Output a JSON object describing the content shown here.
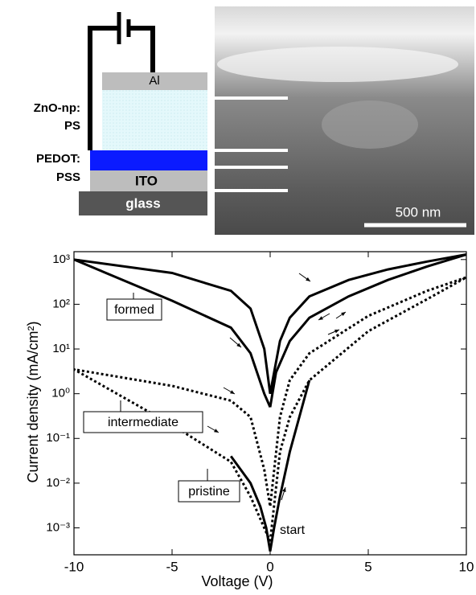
{
  "diagram": {
    "labels": {
      "al": "Al",
      "zno_1": "ZnO-np:",
      "zno_2": "PS",
      "pedot_1": "PEDOT:",
      "pedot_2": "PSS",
      "ito": "ITO",
      "glass": "glass"
    },
    "scale_bar": "500 nm"
  },
  "chart_data": {
    "type": "line",
    "xlabel": "Voltage (V)",
    "ylabel": "Current density (mA/cm²)",
    "xlim": [
      -10,
      10
    ],
    "xticks": [
      -10,
      -5,
      0,
      5,
      10
    ],
    "ylim": [
      0.00025,
      1500
    ],
    "yscale": "log",
    "yticks": [
      {
        "value": 0.001,
        "label": "10⁻³"
      },
      {
        "value": 0.01,
        "label": "10⁻²"
      },
      {
        "value": 0.1,
        "label": "10⁻¹"
      },
      {
        "value": 1,
        "label": "10⁰"
      },
      {
        "value": 10,
        "label": "10¹"
      },
      {
        "value": 100,
        "label": "10²"
      },
      {
        "value": 1000,
        "label": "10³"
      }
    ],
    "series": [
      {
        "name": "formed",
        "color": "#000000",
        "dash": false,
        "x": [
          0,
          0.3,
          1,
          2,
          4,
          6,
          8,
          10,
          8,
          6,
          4,
          2,
          1,
          0.5,
          0.2,
          0,
          -0.3,
          -1,
          -2,
          -5,
          -10,
          -5,
          -2,
          -1,
          -0.3,
          0
        ],
        "values": [
          0.5,
          3,
          15,
          50,
          150,
          350,
          700,
          1300,
          900,
          600,
          350,
          150,
          50,
          15,
          3,
          1,
          10,
          80,
          200,
          500,
          1000,
          120,
          30,
          8,
          1,
          0.5
        ]
      },
      {
        "name": "intermediate",
        "color": "#000000",
        "dash": true,
        "x": [
          0,
          0.5,
          1,
          2,
          5,
          8,
          10,
          8,
          5,
          2,
          1,
          0.5,
          0,
          -0.3,
          -1,
          -2,
          -5,
          -10,
          -5,
          -2,
          -1,
          0
        ],
        "values": [
          0.0005,
          0.05,
          0.3,
          2,
          25,
          130,
          400,
          200,
          55,
          8,
          2,
          0.3,
          0.003,
          0.02,
          0.3,
          0.7,
          1.5,
          3.5,
          0.2,
          0.03,
          0.005,
          0.0005
        ]
      },
      {
        "name": "pristine",
        "color": "#000000",
        "dash": false,
        "x": [
          -2,
          -1,
          -0.5,
          -0.2,
          0,
          0.2,
          0.5,
          1,
          2
        ],
        "values": [
          0.04,
          0.01,
          0.003,
          0.001,
          0.0003,
          0.001,
          0.005,
          0.05,
          2
        ]
      }
    ],
    "annotation": "start"
  }
}
